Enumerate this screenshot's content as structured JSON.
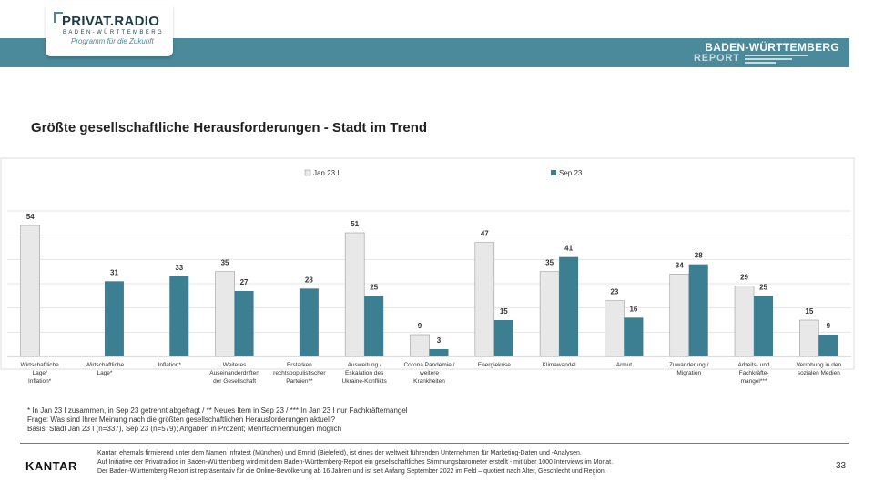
{
  "header": {
    "logo_title": "PRIVAT.RADIO",
    "logo_sub": "BADEN-WÜRTTEMBERG",
    "logo_slogan": "Programm für die Zukunft",
    "report_title": "BADEN-WÜRTTEMBERG",
    "report_sub": "REPORT"
  },
  "title": "Größte gesellschaftliche Herausforderungen - Stadt im Trend",
  "colors": {
    "accent": "#4a8a9b",
    "series_a": "#e8e8e8",
    "series_b": "#3d7f92"
  },
  "chart_data": {
    "type": "bar",
    "title": "Größte gesellschaftliche Herausforderungen - Stadt im Trend",
    "xlabel": "",
    "ylabel": "",
    "ylim": [
      0,
      60
    ],
    "grid": true,
    "legend_position": "top",
    "categories": [
      [
        "Wirtschaftliche",
        "Lage/",
        "Inflation*"
      ],
      [
        "Wirtschaftliche",
        "Lage*"
      ],
      [
        "Inflation*"
      ],
      [
        "Weiteres",
        "Auseinanderdriften",
        "der Gesellschaft"
      ],
      [
        "Erstarken",
        "rechtspopulistischer",
        "Parteien**"
      ],
      [
        "Ausweitung /",
        "Eskalation des",
        "Ukraine-Konflikts"
      ],
      [
        "Corona Pandemie /",
        "weitere",
        "Krankheiten"
      ],
      [
        "Energiekrise"
      ],
      [
        "Klimawandel"
      ],
      [
        "Armut"
      ],
      [
        "Zuwanderung /",
        "Migration"
      ],
      [
        "Arbeits- und",
        "Fachkräfte-",
        "mangel***"
      ],
      [
        "Verrohung in den",
        "sozialen Medien"
      ]
    ],
    "series": [
      {
        "name": "Jan 23 I",
        "values": [
          54,
          null,
          null,
          35,
          null,
          51,
          9,
          47,
          35,
          23,
          34,
          29,
          15
        ]
      },
      {
        "name": "Sep 23",
        "values": [
          null,
          31,
          33,
          27,
          28,
          25,
          3,
          15,
          41,
          16,
          38,
          25,
          9
        ]
      }
    ]
  },
  "footnotes": [
    "* In Jan 23 I zusammen, in Sep 23 getrennt abgefragt / ** Neues Item in Sep 23 / *** In Jan 23 I nur Fachkräftemangel",
    "Frage: Was sind Ihrer Meinung nach die größten gesellschaftlichen Herausforderungen aktuell?",
    "Basis: Stadt Jan 23 I (n=337), Sep 23 (n=579); Angaben in Prozent; Mehrfachnennungen möglich"
  ],
  "footer": {
    "brand": "KANTAR",
    "lines": [
      "Kantar, ehemals firmierend unter dem Namen Infratest (München) und Emnid (Bielefeld), ist eines der weltweit führenden Unternehmen für Marketing-Daten und -Analysen.",
      "Auf Initiative der Privatradios in Baden-Württemberg wird mit dem Baden-Württemberg-Report ein gesellschaftliches Stimmungsbarometer erstellt - mit über 1000 Interviews im Monat.",
      "Der Baden-Württemberg-Report ist repräsentativ für die Online-Bevölkerung ab 16 Jahren und ist seit Anfang September 2022 im Feld – quotiert nach Alter, Geschlecht und Region."
    ],
    "page": "33"
  }
}
